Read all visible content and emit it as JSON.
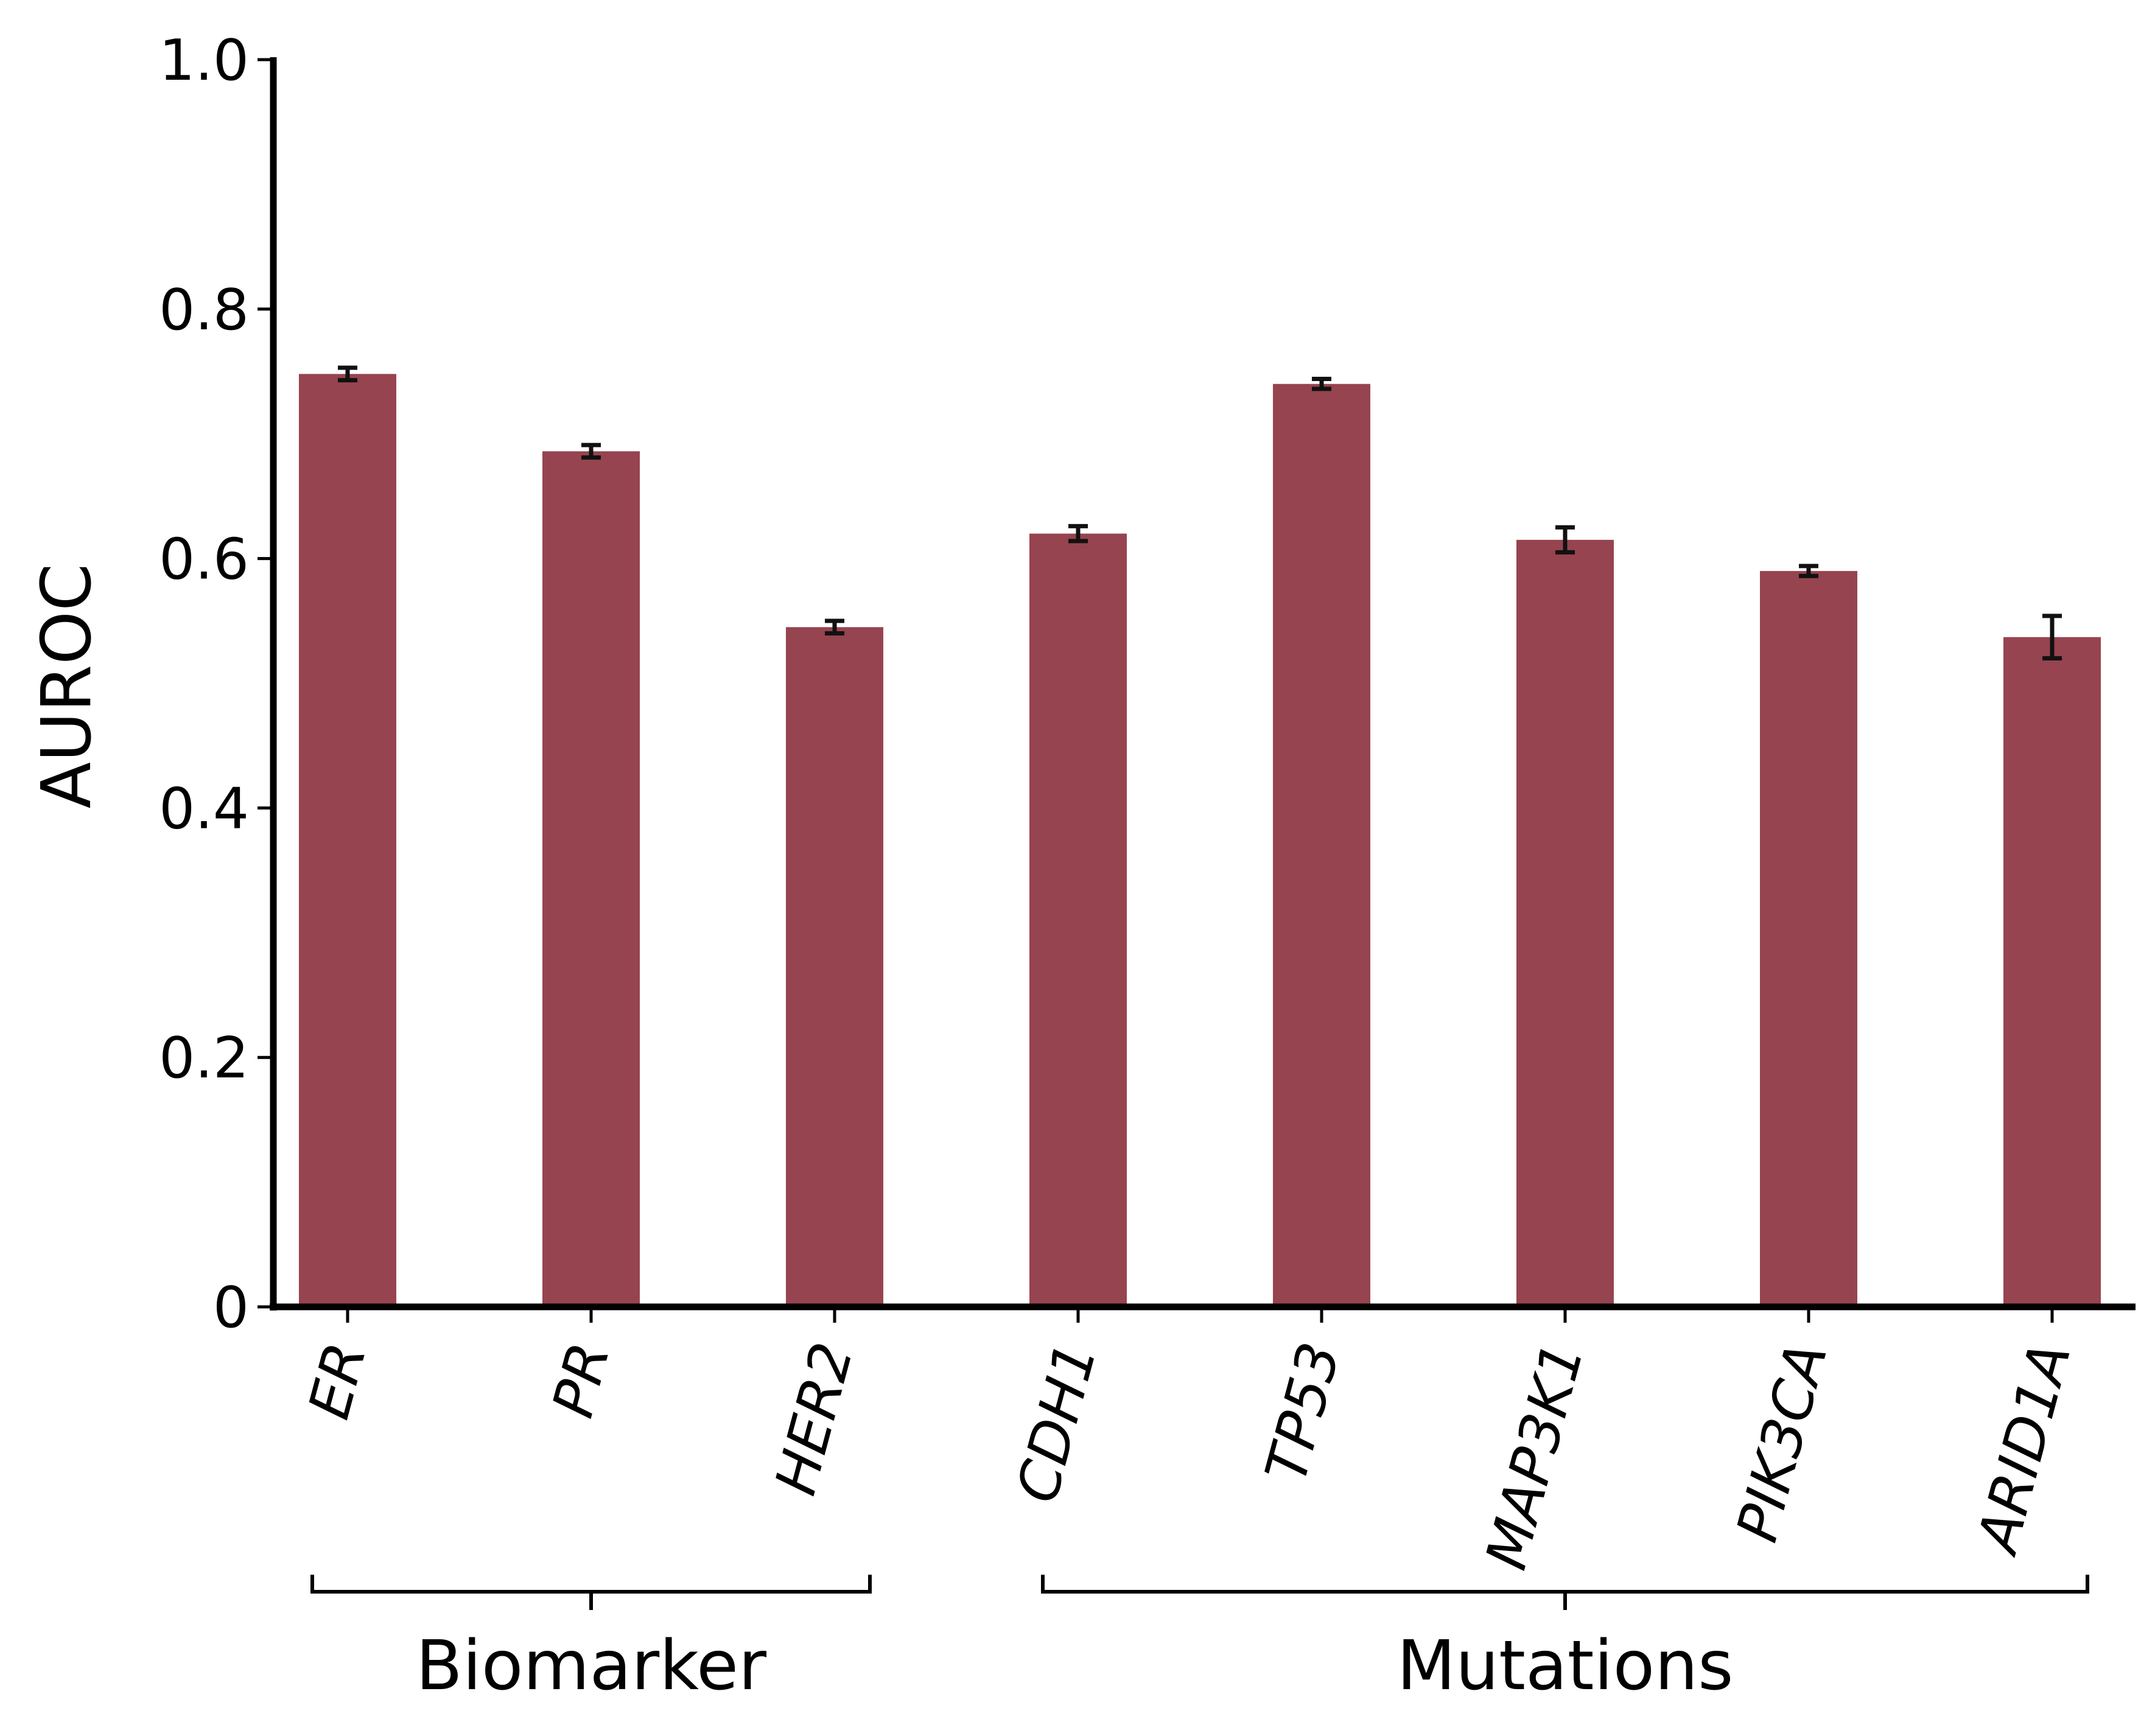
{
  "chart_data": {
    "type": "bar",
    "categories": [
      "ER",
      "PR",
      "HER2",
      "CDH1",
      "TP53",
      "MAP3K1",
      "PIK3CA",
      "ARID1A"
    ],
    "values": [
      0.748,
      0.686,
      0.545,
      0.62,
      0.74,
      0.615,
      0.59,
      0.537
    ],
    "errors": [
      0.005,
      0.005,
      0.005,
      0.006,
      0.004,
      0.01,
      0.004,
      0.017
    ],
    "ylabel": "AUROC",
    "xlabel": "",
    "ylim": [
      0,
      1.0
    ],
    "yticks": [
      "0",
      "0.2",
      "0.4",
      "0.6",
      "0.8",
      "1.0"
    ],
    "groups": [
      {
        "label": "Biomarker",
        "categories": [
          "ER",
          "PR",
          "HER2"
        ]
      },
      {
        "label": "Mutations",
        "categories": [
          "CDH1",
          "TP53",
          "MAP3K1",
          "PIK3CA",
          "ARID1A"
        ]
      }
    ],
    "bar_color": "#96444f",
    "grid": false
  }
}
